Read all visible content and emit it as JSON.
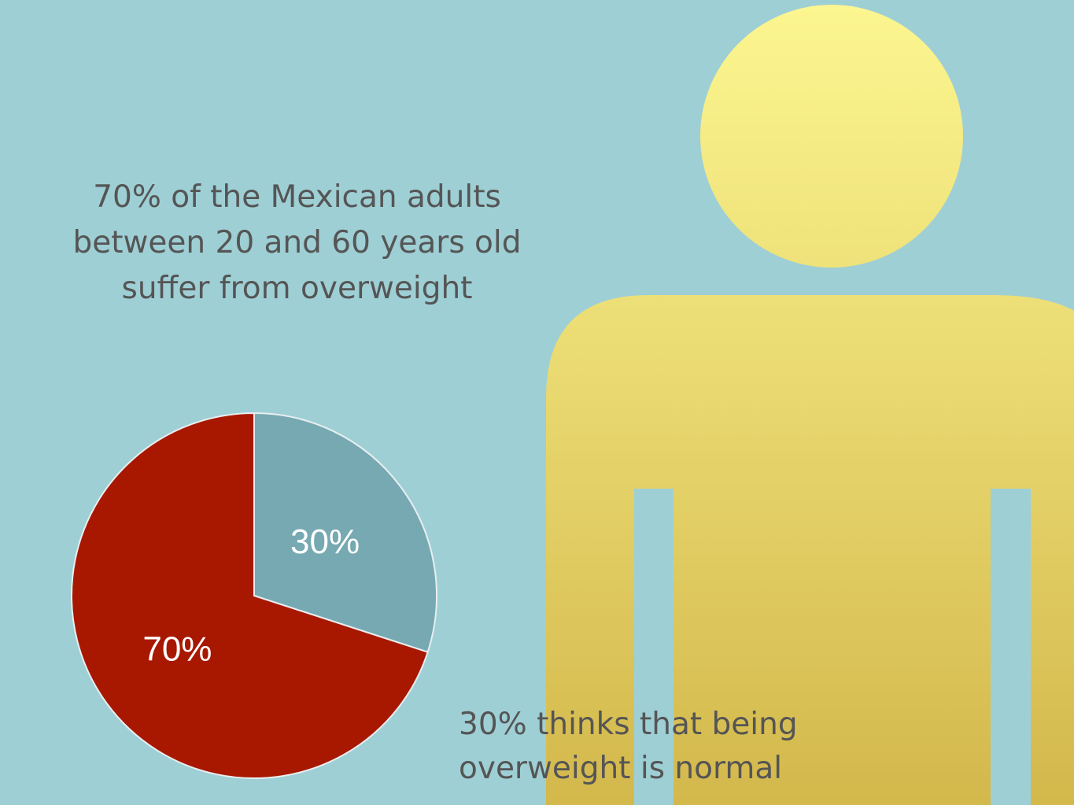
{
  "headline": {
    "line1": "70% of the Mexican adults",
    "line2": "between 20 and 60 years old",
    "line3": "suffer from overweight"
  },
  "caption": {
    "line1": "30% thinks that being",
    "line2": "overweight is normal"
  },
  "colors": {
    "background": "#9ecfd5",
    "person_top": "#fcf690",
    "person_bottom": "#d3b84c",
    "text": "#555555"
  },
  "chart_data": {
    "type": "pie",
    "slices": [
      {
        "label": "30%",
        "value": 30,
        "color": "#76a9b2"
      },
      {
        "label": "70%",
        "value": 70,
        "color": "#a81800"
      }
    ]
  }
}
